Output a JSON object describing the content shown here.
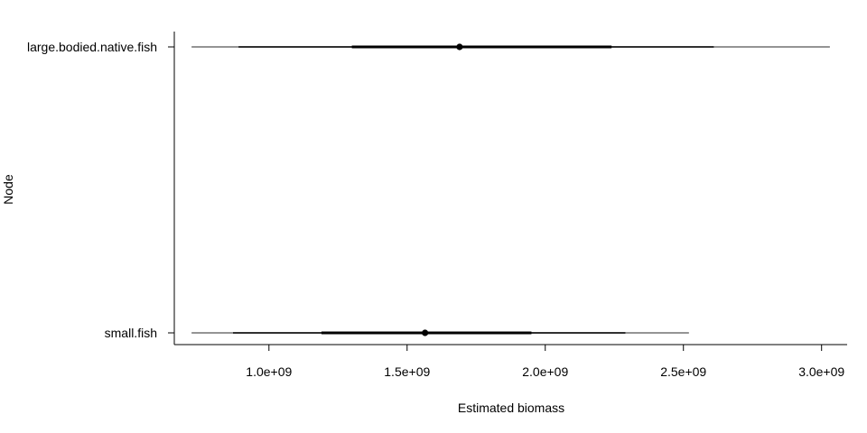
{
  "chart_data": {
    "type": "interval",
    "xlabel": "Estimated biomass",
    "ylabel": "Node",
    "xlim": [
      700000000,
      3050000000
    ],
    "x_ticks": [
      1000000000,
      1500000000,
      2000000000,
      2500000000,
      3000000000
    ],
    "x_tick_labels": [
      "1.0e+09",
      "1.5e+09",
      "2.0e+09",
      "2.5e+09",
      "3.0e+09"
    ],
    "categories": [
      "large.bodied.native.fish",
      "small.fish"
    ],
    "series": [
      {
        "category": "large.bodied.native.fish",
        "median": 1690000000,
        "inner": [
          1300000000,
          2240000000
        ],
        "middle": [
          890000000,
          2610000000
        ],
        "outer": [
          720000000,
          3030000000
        ]
      },
      {
        "category": "small.fish",
        "median": 1565000000,
        "inner": [
          1190000000,
          1950000000
        ],
        "middle": [
          870000000,
          2290000000
        ],
        "outer": [
          720000000,
          2520000000
        ]
      }
    ],
    "grid": false,
    "legend": "none",
    "colors": {
      "inner": "#000000",
      "middle": "#1a1a1a",
      "outer": "#555555",
      "median": "#000000",
      "axis": "#000000"
    }
  }
}
